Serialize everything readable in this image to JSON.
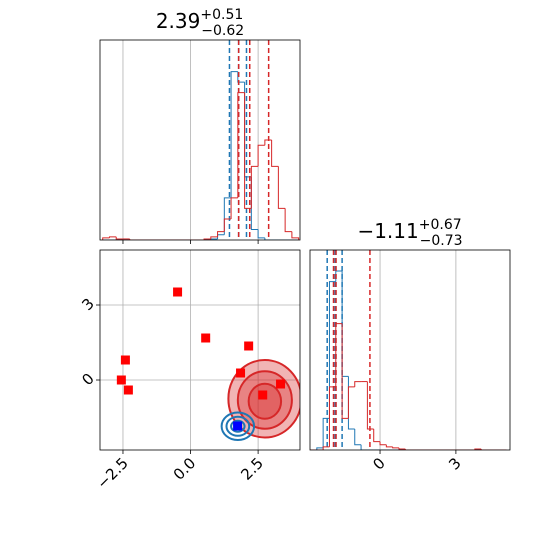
{
  "chart_data": [
    {
      "type": "histogram",
      "title_value": "2.39",
      "title_upper": "+0.51",
      "title_lower": "−0.62",
      "xlim": [
        -3.35,
        4.05
      ],
      "ylim": [
        0,
        190
      ],
      "xticks": [
        {
          "value": -2.5,
          "label": "−2.5"
        },
        {
          "value": 0,
          "label": "0.0"
        },
        2.5
      ],
      "show_xtick_labels": false,
      "grid": true,
      "bins": [
        -3.25,
        -3.0,
        -2.75,
        -2.5,
        -2.25,
        -2.0,
        -1.75,
        -1.5,
        -1.25,
        -1.0,
        -0.75,
        -0.5,
        -0.25,
        0.0,
        0.25,
        0.5,
        0.75,
        1.0,
        1.25,
        1.5,
        1.75,
        2.0,
        2.25,
        2.5,
        2.75,
        3.0,
        3.25,
        3.5,
        3.75,
        4.0
      ],
      "series": [
        {
          "color": "#1f77b4",
          "counts": [
            0,
            0,
            0,
            0,
            0,
            0,
            0,
            0,
            0,
            0,
            0,
            0,
            0,
            0,
            0,
            0,
            1,
            5,
            40,
            160,
            150,
            60,
            10,
            2,
            0,
            0,
            0,
            0,
            0
          ],
          "quantiles": [
            1.44,
            1.78,
            2.07
          ]
        },
        {
          "color": "#d62728",
          "counts": [
            2,
            3,
            1,
            1,
            0,
            0,
            0,
            0,
            0,
            0,
            0,
            0,
            0,
            0,
            0,
            1,
            3,
            8,
            20,
            40,
            140,
            30,
            70,
            90,
            95,
            70,
            30,
            8,
            2
          ],
          "quantiles": [
            1.78,
            2.19,
            2.89
          ]
        }
      ]
    },
    {
      "type": "scatter",
      "xlim": [
        -3.35,
        4.05
      ],
      "ylim": [
        -2.8,
        5.2
      ],
      "xticks": [
        {
          "value": -2.5,
          "label": "−2.5"
        },
        {
          "value": 0,
          "label": "0.0"
        },
        2.5
      ],
      "yticks": [
        3,
        0
      ],
      "grid": true,
      "contours": [
        {
          "color": "#d62728",
          "filled": true,
          "levels": [
            {
              "cx": 2.75,
              "cy": -0.75,
              "rx": 1.35,
              "ry": 1.55
            },
            {
              "cx": 2.75,
              "cy": -0.8,
              "rx": 1.0,
              "ry": 1.15
            },
            {
              "cx": 2.75,
              "cy": -0.85,
              "rx": 0.6,
              "ry": 0.7
            }
          ]
        },
        {
          "color": "#1f77b4",
          "filled": false,
          "levels": [
            {
              "cx": 1.75,
              "cy": -1.85,
              "rx": 0.6,
              "ry": 0.55
            },
            {
              "cx": 1.75,
              "cy": -1.85,
              "rx": 0.42,
              "ry": 0.38
            },
            {
              "cx": 1.75,
              "cy": -1.85,
              "rx": 0.25,
              "ry": 0.22
            }
          ]
        }
      ],
      "series": [
        {
          "color": "#ff0000",
          "x": [
            -2.41,
            -2.56,
            -2.3,
            -0.48,
            0.56,
            2.15,
            1.85,
            2.67,
            3.33
          ],
          "y": [
            0.8,
            0.0,
            -0.4,
            3.52,
            1.68,
            1.36,
            0.28,
            -0.6,
            -0.16
          ]
        },
        {
          "color": "#0000ff",
          "x": [
            1.74
          ],
          "y": [
            -1.84
          ]
        }
      ]
    },
    {
      "type": "histogram",
      "title_value": "−1.11",
      "title_upper": "+0.67",
      "title_lower": "−0.73",
      "xlim": [
        -2.77,
        5.14
      ],
      "ylim": [
        0,
        190
      ],
      "xticks": [
        0,
        3
      ],
      "show_xtick_labels": true,
      "grid": true,
      "bins": [
        -2.75,
        -2.5,
        -2.25,
        -2.0,
        -1.75,
        -1.5,
        -1.25,
        -1.0,
        -0.75,
        -0.5,
        -0.25,
        0.0,
        0.25,
        0.5,
        0.75,
        1.0,
        1.25,
        1.5,
        1.75,
        2.0,
        2.25,
        2.5,
        2.75,
        3.0,
        3.25,
        3.5,
        3.75,
        4.0,
        4.25,
        4.5,
        4.75,
        5.0
      ],
      "series": [
        {
          "color": "#1f77b4",
          "counts": [
            0,
            2,
            30,
            160,
            170,
            70,
            20,
            5,
            0,
            0,
            0,
            0,
            0,
            0,
            0,
            0,
            0,
            0,
            0,
            0,
            0,
            0,
            0,
            0,
            0,
            0,
            0,
            0,
            0,
            0,
            0
          ],
          "quantiles": [
            -2.09,
            -1.78,
            -1.5
          ]
        },
        {
          "color": "#d62728",
          "counts": [
            0,
            0,
            3,
            60,
            120,
            30,
            60,
            65,
            65,
            20,
            8,
            5,
            3,
            2,
            1,
            0,
            0,
            0,
            0,
            0,
            0,
            0,
            0,
            0,
            0,
            0,
            1,
            0,
            0,
            0,
            0
          ],
          "quantiles": [
            -1.84,
            -1.74,
            -0.4
          ]
        }
      ]
    }
  ]
}
